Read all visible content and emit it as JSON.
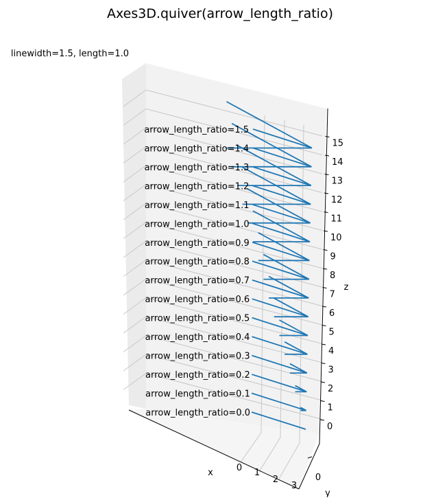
{
  "chart_data": {
    "type": "quiver3d",
    "title": "Axes3D.quiver(arrow_length_ratio)",
    "subtitle": "linewidth=1.5, length=1.0",
    "xlabel": "x",
    "ylabel": "y",
    "zlabel": "z",
    "x_ticks": [
      "0",
      "1",
      "2",
      "3"
    ],
    "y_ticks": [
      "0"
    ],
    "z_ticks": [
      "0",
      "1",
      "2",
      "3",
      "4",
      "5",
      "6",
      "7",
      "8",
      "9",
      "10",
      "11",
      "12",
      "13",
      "14",
      "15"
    ],
    "series_color": "#1f77b4",
    "arrows": [
      {
        "label": "arrow_length_ratio=0.0",
        "z": 0,
        "ratio": 0.0
      },
      {
        "label": "arrow_length_ratio=0.1",
        "z": 1,
        "ratio": 0.1
      },
      {
        "label": "arrow_length_ratio=0.2",
        "z": 2,
        "ratio": 0.2
      },
      {
        "label": "arrow_length_ratio=0.3",
        "z": 3,
        "ratio": 0.3
      },
      {
        "label": "arrow_length_ratio=0.4",
        "z": 4,
        "ratio": 0.4
      },
      {
        "label": "arrow_length_ratio=0.5",
        "z": 5,
        "ratio": 0.5
      },
      {
        "label": "arrow_length_ratio=0.6",
        "z": 6,
        "ratio": 0.6
      },
      {
        "label": "arrow_length_ratio=0.7",
        "z": 7,
        "ratio": 0.7
      },
      {
        "label": "arrow_length_ratio=0.8",
        "z": 8,
        "ratio": 0.8
      },
      {
        "label": "arrow_length_ratio=0.9",
        "z": 9,
        "ratio": 0.9
      },
      {
        "label": "arrow_length_ratio=1.0",
        "z": 10,
        "ratio": 1.0
      },
      {
        "label": "arrow_length_ratio=1.1",
        "z": 11,
        "ratio": 1.1
      },
      {
        "label": "arrow_length_ratio=1.2",
        "z": 12,
        "ratio": 1.2
      },
      {
        "label": "arrow_length_ratio=1.3",
        "z": 13,
        "ratio": 1.3
      },
      {
        "label": "arrow_length_ratio=1.4",
        "z": 14,
        "ratio": 1.4
      },
      {
        "label": "arrow_length_ratio=1.5",
        "z": 15,
        "ratio": 1.5
      }
    ]
  }
}
